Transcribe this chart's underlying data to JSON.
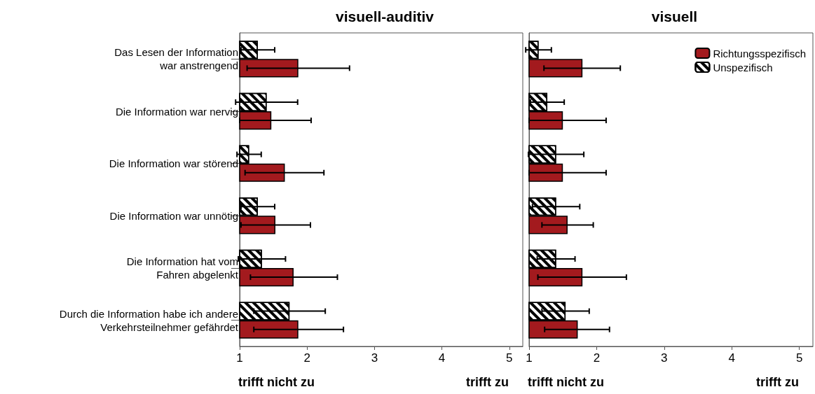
{
  "chart_data": [
    {
      "type": "bar",
      "orientation": "horizontal",
      "title": "visuell-auditiv",
      "categories": [
        "Das Lesen der Information\nwar anstrengend",
        "Die Information war nervig",
        "Die Information war störend",
        "Die Information war unnötig",
        "Die Information hat vom\nFahren abgelenkt",
        "Durch die Information habe ich andere\nVerkehrsteilnehmer gefährdet"
      ],
      "series": [
        {
          "color": "#000000",
          "values": [
            1.27,
            1.4,
            1.14,
            1.27,
            1.33,
            1.74
          ],
          "errors": [
            0.25,
            0.46,
            0.18,
            0.25,
            0.35,
            0.53
          ]
        },
        {
          "color": "#a31a1e",
          "values": [
            1.87,
            1.47,
            1.67,
            1.53,
            1.8,
            1.87
          ],
          "errors": [
            [
              1.11,
              2.63
            ],
            [
              1,
              2.06
            ],
            [
              1.08,
              2.25
            ],
            [
              1.02,
              2.05
            ],
            [
              1.16,
              2.45
            ],
            [
              1.21,
              2.54
            ]
          ]
        }
      ],
      "xlim": [
        1,
        5.2
      ],
      "xticks": [
        1,
        2,
        3,
        4,
        5
      ],
      "grid": false,
      "legend": false,
      "annotations": [
        "trifft nicht zu",
        "trifft zu"
      ]
    },
    {
      "type": "bar",
      "orientation": "horizontal",
      "title": "visuell",
      "categories": [
        null,
        null,
        null,
        null,
        null,
        null
      ],
      "series": [
        {
          "name": "Unspezifisch",
          "color": "#000000",
          "values": [
            1.14,
            1.27,
            1.4,
            1.4,
            1.4,
            1.54
          ],
          "errors": [
            0.19,
            0.25,
            0.41,
            0.35,
            0.28,
            0.35
          ]
        },
        {
          "name": "Richtungsspezifisch",
          "color": "#a31a1e",
          "values": [
            1.79,
            1.5,
            1.5,
            1.57,
            1.79,
            1.72
          ],
          "errors": [
            [
              1.22,
              2.35
            ],
            [
              1,
              2.14
            ],
            [
              1,
              2.14
            ],
            [
              1.19,
              1.95
            ],
            [
              1.13,
              2.44
            ],
            [
              1.23,
              2.19
            ]
          ]
        }
      ],
      "xlim": [
        1,
        5.2
      ],
      "xticks": [
        1,
        2,
        3,
        4,
        5
      ],
      "grid": false,
      "legend": "top right",
      "tick_labels": "x",
      "annotations": [
        "trifft nicht zu",
        "trifft zu"
      ]
    }
  ]
}
